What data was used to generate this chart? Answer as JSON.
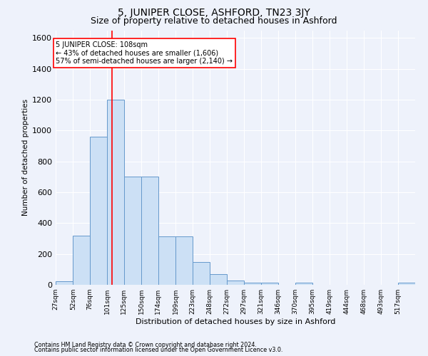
{
  "title": "5, JUNIPER CLOSE, ASHFORD, TN23 3JY",
  "subtitle": "Size of property relative to detached houses in Ashford",
  "xlabel": "Distribution of detached houses by size in Ashford",
  "ylabel": "Number of detached properties",
  "footer1": "Contains HM Land Registry data © Crown copyright and database right 2024.",
  "footer2": "Contains public sector information licensed under the Open Government Licence v3.0.",
  "annotation_line1": "5 JUNIPER CLOSE: 108sqm",
  "annotation_line2": "← 43% of detached houses are smaller (1,606)",
  "annotation_line3": "57% of semi-detached houses are larger (2,140) →",
  "bar_color": "#cce0f5",
  "bar_edge_color": "#6699cc",
  "red_line_x": 108,
  "categories": [
    "27sqm",
    "52sqm",
    "76sqm",
    "101sqm",
    "125sqm",
    "150sqm",
    "174sqm",
    "199sqm",
    "223sqm",
    "248sqm",
    "272sqm",
    "297sqm",
    "321sqm",
    "346sqm",
    "370sqm",
    "395sqm",
    "419sqm",
    "444sqm",
    "468sqm",
    "493sqm",
    "517sqm"
  ],
  "bin_edges": [
    27,
    52,
    76,
    101,
    125,
    150,
    174,
    199,
    223,
    248,
    272,
    297,
    321,
    346,
    370,
    395,
    419,
    444,
    468,
    493,
    517,
    542
  ],
  "values": [
    25,
    320,
    960,
    1200,
    700,
    700,
    315,
    315,
    150,
    70,
    30,
    15,
    15,
    0,
    15,
    0,
    0,
    0,
    0,
    0,
    15
  ],
  "ylim": [
    0,
    1650
  ],
  "yticks": [
    0,
    200,
    400,
    600,
    800,
    1000,
    1200,
    1400,
    1600
  ],
  "background_color": "#eef2fb",
  "grid_color": "#ffffff",
  "title_fontsize": 10,
  "subtitle_fontsize": 9
}
